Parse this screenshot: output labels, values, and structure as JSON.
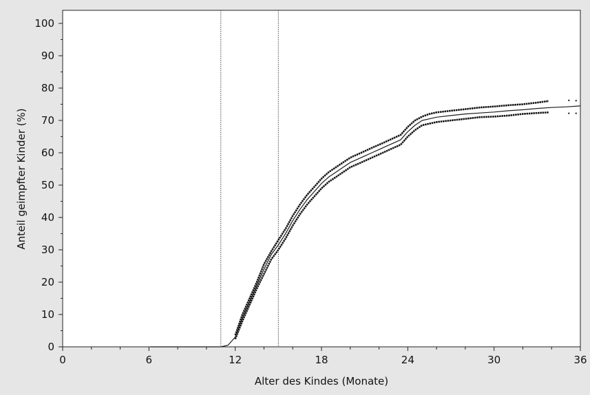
{
  "chart_data": {
    "type": "line",
    "title": "",
    "xlabel": "Alter des Kindes (Monate)",
    "ylabel": "Anteil geimpfter Kinder (%)",
    "xlim": [
      0,
      36
    ],
    "ylim": [
      0,
      100
    ],
    "x_ticks": [
      0,
      6,
      12,
      18,
      24,
      30,
      36
    ],
    "y_ticks": [
      0,
      10,
      20,
      30,
      40,
      50,
      60,
      70,
      80,
      90,
      100
    ],
    "grid": false,
    "legend": "none",
    "reference_lines_x": [
      11,
      15
    ],
    "colors": {
      "background": "#e6e6e6",
      "plot_area": "#ffffff",
      "line": "#1a1a1a",
      "ci_bands": "#111111"
    },
    "series": [
      {
        "role": "estimate",
        "x": [
          6.1,
          11.0,
          11.5,
          12.0,
          12.5,
          13.0,
          13.5,
          14.0,
          14.5,
          15.0,
          15.5,
          16.0,
          16.5,
          17.0,
          17.5,
          18.0,
          18.5,
          19.0,
          19.5,
          20.0,
          20.5,
          21.0,
          21.5,
          22.0,
          22.5,
          23.0,
          23.5,
          24.0,
          24.5,
          25.0,
          25.5,
          26.0,
          27.0,
          28.0,
          29.0,
          30.0,
          31.0,
          32.0,
          33.0,
          34.0,
          35.0,
          36.0
        ],
        "values": [
          0,
          0,
          0.5,
          3,
          9,
          14,
          19,
          24,
          28.5,
          31.5,
          35,
          39,
          42.5,
          45.5,
          48,
          50.5,
          52.5,
          54,
          55.5,
          57,
          58,
          59,
          60,
          61,
          62,
          63,
          64,
          66.5,
          68.5,
          70,
          70.5,
          71,
          71.5,
          72,
          72.3,
          72.6,
          73,
          73.3,
          73.7,
          74,
          74.2,
          74.5
        ]
      },
      {
        "role": "upper-confidence-limit",
        "x": [
          12.0,
          12.5,
          13.0,
          13.5,
          14.0,
          14.5,
          15.0,
          15.5,
          16.0,
          16.5,
          17.0,
          17.5,
          18.0,
          18.5,
          19.0,
          19.5,
          20.0,
          20.5,
          21.0,
          21.5,
          22.0,
          22.5,
          23.0,
          23.5,
          24.0,
          24.5,
          25.0,
          25.5,
          26.0,
          27.0,
          28.0,
          29.0,
          30.0,
          31.0,
          32.0,
          33.0,
          33.8
        ],
        "values": [
          3.6,
          10,
          15,
          20,
          25.5,
          29.5,
          33,
          36.5,
          40.5,
          44,
          47,
          49.5,
          52,
          54,
          55.5,
          57,
          58.5,
          59.5,
          60.5,
          61.5,
          62.5,
          63.5,
          64.5,
          65.5,
          68,
          70,
          71.2,
          72,
          72.5,
          73,
          73.5,
          74,
          74.3,
          74.7,
          75,
          75.5,
          76
        ]
      },
      {
        "role": "lower-confidence-limit",
        "x": [
          12.0,
          12.5,
          13.0,
          13.5,
          14.0,
          14.5,
          15.0,
          15.5,
          16.0,
          16.5,
          17.0,
          17.5,
          18.0,
          18.5,
          19.0,
          19.5,
          20.0,
          20.5,
          21.0,
          21.5,
          22.0,
          22.5,
          23.0,
          23.5,
          24.0,
          24.5,
          25.0,
          25.5,
          26.0,
          27.0,
          28.0,
          29.0,
          30.0,
          31.0,
          32.0,
          33.0,
          33.8
        ],
        "values": [
          2.4,
          8,
          13,
          18,
          22.5,
          27,
          30,
          33.5,
          37.5,
          41,
          44,
          46.5,
          49,
          51,
          52.5,
          54,
          55.5,
          56.5,
          57.5,
          58.5,
          59.5,
          60.5,
          61.5,
          62.5,
          65,
          67,
          68.5,
          69,
          69.5,
          70,
          70.5,
          71,
          71.2,
          71.5,
          72,
          72.3,
          72.5
        ]
      }
    ]
  }
}
